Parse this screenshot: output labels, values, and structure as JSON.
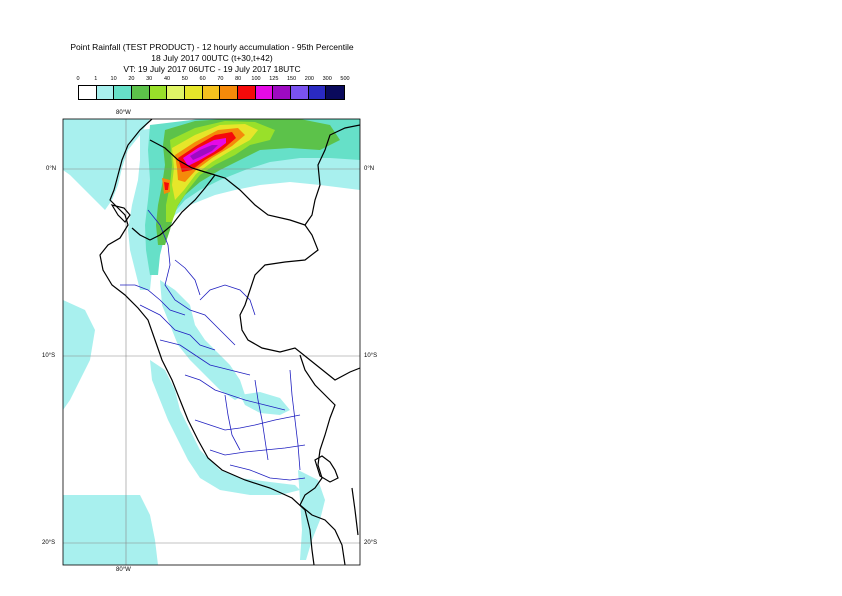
{
  "title": {
    "line1": "Point Rainfall (TEST PRODUCT) - 12 hourly accumulation - 95th Percentile",
    "line2": "18 July 2017 00UTC (t+30,t+42)",
    "line3": "VT: 19 July 2017 06UTC - 19 July 2017 18UTC"
  },
  "legend": {
    "thresholds": [
      "0",
      "1",
      "10",
      "20",
      "30",
      "40",
      "50",
      "60",
      "70",
      "80",
      "100",
      "125",
      "150",
      "200",
      "300",
      "500"
    ],
    "colors": [
      "#ffffff",
      "#a8f0ee",
      "#66e0c8",
      "#5cc24a",
      "#99e02a",
      "#e0f566",
      "#e6e62a",
      "#f5c21e",
      "#f58a0a",
      "#f50a0a",
      "#e60ae6",
      "#9e0ac2",
      "#7a52f0",
      "#2a2ac2",
      "#0a0a5c"
    ]
  },
  "map": {
    "lon_labels": [
      "80°W",
      "80°W"
    ],
    "lat_labels_left": [
      "0°N",
      "10°S",
      "20°S"
    ],
    "lat_labels_right": [
      "0°N",
      "10°S",
      "20°S"
    ],
    "colors": {
      "ocean_light": "#bff5f2",
      "country_border": "#000000",
      "region_border": "#2020c0",
      "grid": "#888888"
    }
  }
}
